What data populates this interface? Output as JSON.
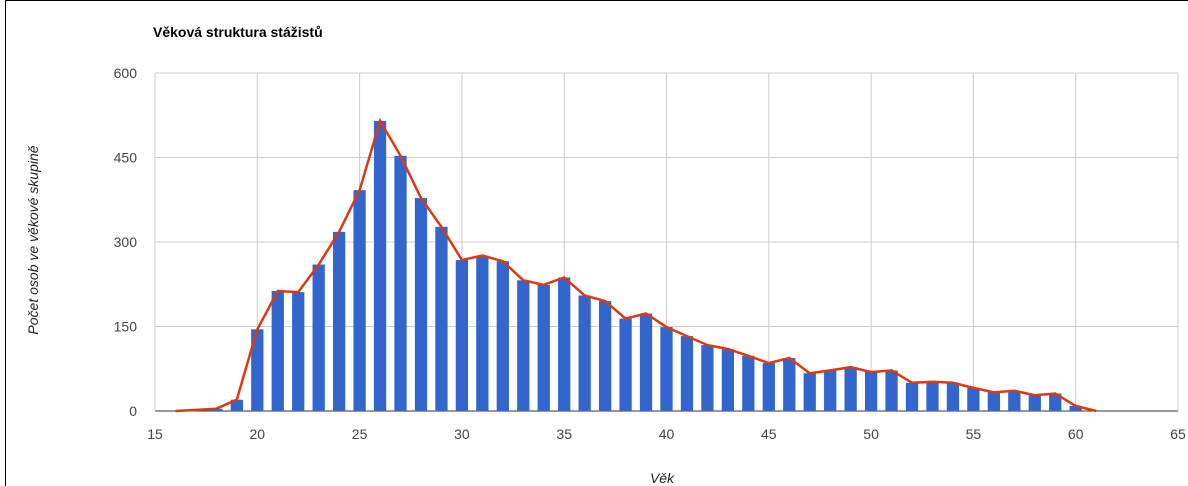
{
  "chart_data": {
    "type": "bar",
    "title": "Věková struktura stážistů",
    "xlabel": "Věk",
    "ylabel": "Počet osob ve věkové skupině",
    "xlim": [
      15,
      65
    ],
    "ylim": [
      0,
      600
    ],
    "x_ticks": [
      "15",
      "20",
      "25",
      "30",
      "35",
      "40",
      "45",
      "50",
      "55",
      "60",
      "65"
    ],
    "y_ticks": [
      "0",
      "150",
      "300",
      "450",
      "600"
    ],
    "grid": true,
    "colors": {
      "bars": "#3366cc",
      "line": "#dc3912",
      "grid": "#cccccc"
    },
    "x": [
      16,
      17,
      18,
      19,
      20,
      21,
      22,
      23,
      24,
      25,
      26,
      27,
      28,
      29,
      30,
      31,
      32,
      33,
      34,
      35,
      36,
      37,
      38,
      39,
      40,
      41,
      42,
      43,
      44,
      45,
      46,
      47,
      48,
      49,
      50,
      51,
      52,
      53,
      54,
      55,
      56,
      57,
      58,
      59,
      60,
      61
    ],
    "series": [
      {
        "type": "bar",
        "values": [
          0,
          2,
          4,
          20,
          145,
          213,
          211,
          260,
          318,
          392,
          515,
          453,
          378,
          327,
          268,
          276,
          266,
          232,
          224,
          237,
          205,
          195,
          164,
          173,
          149,
          133,
          117,
          110,
          98,
          85,
          94,
          67,
          72,
          78,
          69,
          72,
          50,
          52,
          50,
          41,
          33,
          36,
          28,
          31,
          9,
          0
        ]
      },
      {
        "type": "line",
        "values": [
          0,
          2,
          4,
          20,
          145,
          213,
          211,
          260,
          318,
          392,
          515,
          453,
          378,
          327,
          268,
          276,
          266,
          232,
          224,
          237,
          205,
          195,
          164,
          173,
          149,
          133,
          117,
          110,
          98,
          85,
          94,
          67,
          72,
          78,
          69,
          72,
          50,
          52,
          50,
          41,
          33,
          36,
          28,
          31,
          9,
          0
        ]
      }
    ]
  }
}
